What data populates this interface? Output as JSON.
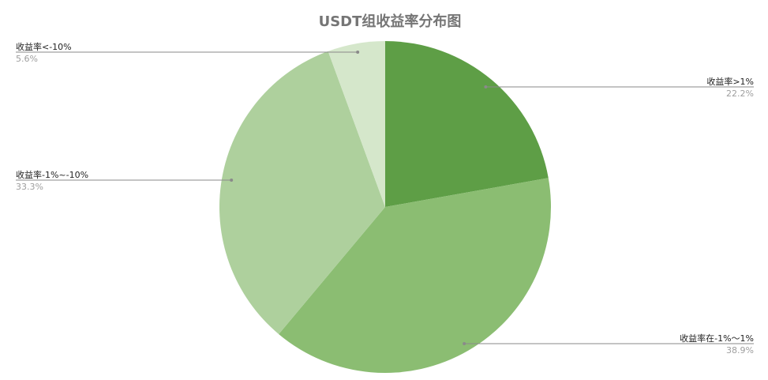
{
  "chart_data": {
    "type": "pie",
    "title": "USDT组收益率分布图",
    "slices": [
      {
        "label": "收益率>1%",
        "value": 22.2,
        "display": "22.2%",
        "color": "#5e9e46"
      },
      {
        "label": "收益率在-1%～1%",
        "value": 38.9,
        "display": "38.9%",
        "color": "#8bbd72"
      },
      {
        "label": "收益率-1%~-10%",
        "value": 33.3,
        "display": "33.3%",
        "color": "#aed09d"
      },
      {
        "label": "收益率<-10%",
        "value": 5.6,
        "display": "5.6%",
        "color": "#d5e7cb"
      }
    ],
    "start_angle": "12 o'clock",
    "direction": "clockwise",
    "legend": "none"
  }
}
